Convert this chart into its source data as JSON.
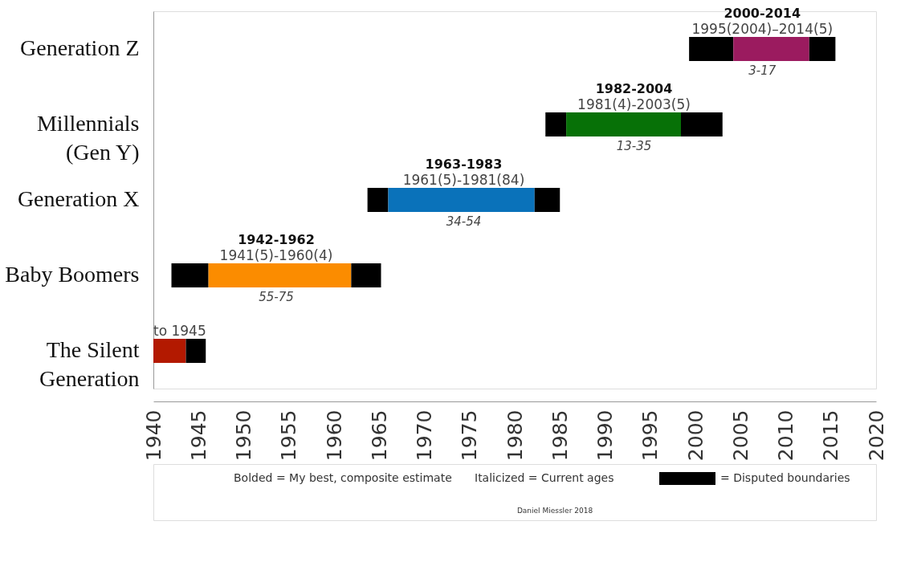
{
  "chart_data": {
    "type": "bar",
    "orientation": "horizontal",
    "categories": [
      "Generation Z",
      "Millennials\n(Gen Y)",
      "Generation X",
      "Baby Boomers",
      "The Silent\nGeneration"
    ],
    "series": [
      {
        "name": "= Disputed boundaries",
        "color": "#000000",
        "base": [
          1999.3,
          1983.4,
          1963.7,
          1942.0,
          null
        ],
        "values": [
          4.9,
          2.3,
          2.3,
          4.1,
          null
        ]
      },
      {
        "colors": [
          "#9b1b5f",
          "#077107",
          "#0a72ba",
          "#fb8c00",
          "#b31900"
        ],
        "base": [
          2004.2,
          1985.7,
          1966.0,
          1946.1,
          1940.0
        ],
        "values": [
          8.4,
          12.7,
          16.2,
          15.8,
          3.6
        ]
      },
      {
        "color": "#000000",
        "base": [
          2012.6,
          1998.4,
          1982.2,
          1961.9,
          1943.6
        ],
        "values": [
          2.9,
          4.6,
          2.8,
          3.3,
          2.2
        ]
      }
    ],
    "xlim": [
      1940,
      2020
    ],
    "xticks": [
      1940,
      1945,
      1950,
      1955,
      1960,
      1965,
      1970,
      1975,
      1980,
      1985,
      1990,
      1995,
      2000,
      2005,
      2010,
      2015,
      2020
    ],
    "annotations": [
      "2000-2014",
      "1995(2004)–2014(5)",
      "3-17",
      "1982-2004",
      "1981(4)-2003(5)",
      "13-35",
      "1963-1983",
      "1961(5)-1981(84)",
      "34-54",
      "1942-1962",
      "1941(5)-1960(4)",
      "55-75",
      "to 1945",
      "Bolded = My best, composite estimate",
      "Italicized = Current ages",
      "Daniel Miessler 2018"
    ],
    "legend": "bottom",
    "grid": false
  }
}
